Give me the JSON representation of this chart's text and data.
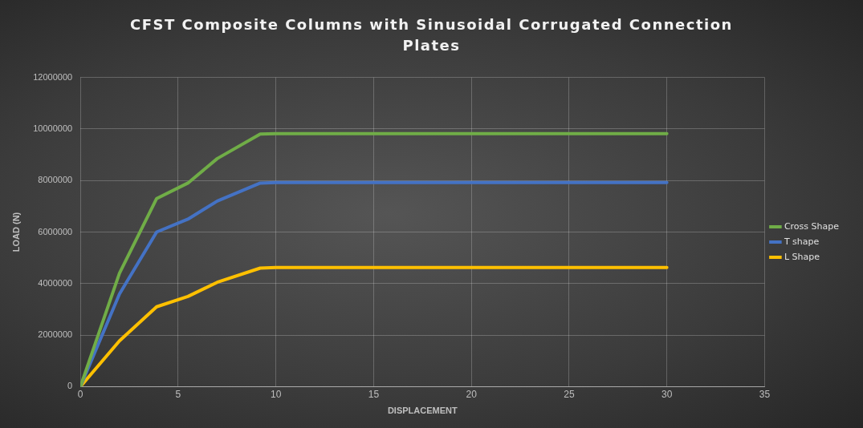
{
  "chart_data": {
    "type": "line",
    "title": "CFST Composite Columns with Sinusoidal Corrugated Connection Plates",
    "xlabel": "DISPLACEMENT",
    "ylabel": "LOAD (N)",
    "x": [
      0,
      2,
      3.9,
      5.5,
      7,
      9.2,
      10,
      30
    ],
    "series": [
      {
        "name": "Cross Shape",
        "color": "#70ad47",
        "values": [
          0,
          4400000,
          7300000,
          7900000,
          8850000,
          9800000,
          9820000,
          9820000
        ]
      },
      {
        "name": "T shape",
        "color": "#4472c4",
        "values": [
          0,
          3600000,
          6000000,
          6500000,
          7200000,
          7900000,
          7920000,
          7920000
        ]
      },
      {
        "name": "L Shape",
        "color": "#ffc000",
        "values": [
          0,
          1780000,
          3100000,
          3500000,
          4050000,
          4600000,
          4620000,
          4620000
        ]
      }
    ],
    "xlim": [
      0,
      35
    ],
    "xticks": [
      0,
      5,
      10,
      15,
      20,
      25,
      30,
      35
    ],
    "ylim": [
      0,
      12000000
    ],
    "yticks": [
      0,
      2000000,
      4000000,
      6000000,
      8000000,
      10000000,
      12000000
    ],
    "grid": true,
    "legend": "right",
    "marker": "none",
    "line_style": "solid"
  }
}
